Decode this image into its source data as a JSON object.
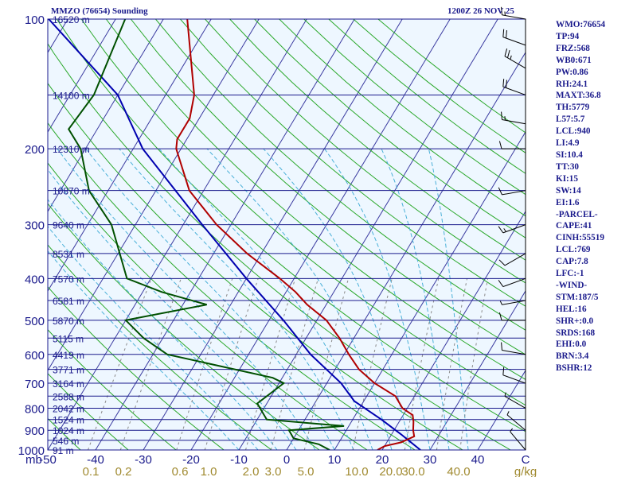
{
  "header": {
    "station": "MMZO (76654) Sounding",
    "time": "1200Z 26 NOV 25"
  },
  "colors": {
    "background": "#ffffff",
    "plot_bg": "#eef7ff",
    "isobar": "#1a1a8c",
    "isotherm": "#3a3aa0",
    "dry_adiabat": "#2aa82a",
    "moist_adiabat": "#4ab0d8",
    "mixing_ratio": "#8a8a8a",
    "temperature": "#b00000",
    "dewpoint": "#005000",
    "parcel": "#0000b0",
    "label": "#1a1a8c",
    "mixing_label": "#a08a30",
    "wind": "#000000"
  },
  "indices": [
    "WMO:76654",
    "TP:94",
    "FRZ:568",
    "WB0:671",
    "PW:0.86",
    "RH:24.1",
    "MAXT:36.8",
    "TH:5779",
    "L57:5.7",
    "LCL:940",
    "LI:4.9",
    "SI:10.4",
    "TT:30",
    "KI:15",
    "SW:14",
    "EI:1.6",
    "-PARCEL-",
    "CAPE:41",
    "CINH:55519",
    "LCL:769",
    "CAP:7.8",
    "LFC:-1",
    "-WIND-",
    "STM:187/5",
    "HEL:16",
    "SHR+:0.0",
    "SRDS:168",
    "EHI:0.0",
    "BRN:3.4",
    "BSHR:12"
  ],
  "chart_data": {
    "type": "skew-t log-p sounding",
    "title": "MMZO (76654) Sounding",
    "valid_time": "1200Z 26 NOV 25",
    "pressure_label": "mb",
    "temperature_unit": "C",
    "mixing_ratio_unit": "g/kg",
    "pressure_range_mb": [
      100,
      1000
    ],
    "temperature_range_c": [
      -50,
      50
    ],
    "pressure_ticks": [
      100,
      200,
      300,
      400,
      500,
      600,
      700,
      800,
      900,
      1000
    ],
    "temperature_ticks": [
      "-50",
      "-40",
      "-30",
      "-20",
      "-10",
      "0",
      "10",
      "20",
      "30",
      "40",
      "C"
    ],
    "mixing_ratio_ticks": [
      "0.1",
      "0.2",
      "0.6",
      "1.0",
      "2.0",
      "3.0",
      "5.0",
      "10.0",
      "20.0",
      "30.0",
      "40.0",
      "g/kg"
    ],
    "height_labels": [
      {
        "p": 100,
        "label": "16520 m"
      },
      {
        "p": 150,
        "label": "14100 m"
      },
      {
        "p": 200,
        "label": "12310 m"
      },
      {
        "p": 250,
        "label": "10870 m"
      },
      {
        "p": 300,
        "label": "9640 m"
      },
      {
        "p": 350,
        "label": "8531 m"
      },
      {
        "p": 400,
        "label": "7570 m"
      },
      {
        "p": 450,
        "label": "6581 m"
      },
      {
        "p": 500,
        "label": "5870 m"
      },
      {
        "p": 550,
        "label": "5115 m"
      },
      {
        "p": 600,
        "label": "4419 m"
      },
      {
        "p": 650,
        "label": "3771 m"
      },
      {
        "p": 700,
        "label": "3164 m"
      },
      {
        "p": 750,
        "label": "2588 m"
      },
      {
        "p": 800,
        "label": "2042 m"
      },
      {
        "p": 850,
        "label": "1524 m"
      },
      {
        "p": 900,
        "label": "1024 m"
      },
      {
        "p": 950,
        "label": "546 m"
      },
      {
        "p": 1000,
        "label": "91 m"
      }
    ],
    "temperature_profile": [
      [
        100,
        -75
      ],
      [
        150,
        -64
      ],
      [
        170,
        -62
      ],
      [
        190,
        -62
      ],
      [
        200,
        -61
      ],
      [
        250,
        -53
      ],
      [
        300,
        -43
      ],
      [
        350,
        -33
      ],
      [
        400,
        -23
      ],
      [
        430,
        -18
      ],
      [
        460,
        -14
      ],
      [
        500,
        -8
      ],
      [
        550,
        -3
      ],
      [
        600,
        1
      ],
      [
        650,
        5
      ],
      [
        700,
        10
      ],
      [
        750,
        16
      ],
      [
        800,
        19
      ],
      [
        830,
        22
      ],
      [
        860,
        23
      ],
      [
        900,
        24
      ],
      [
        930,
        25
      ],
      [
        960,
        23
      ],
      [
        980,
        20
      ],
      [
        1000,
        19
      ]
    ],
    "dewpoint_profile": [
      [
        100,
        -88
      ],
      [
        150,
        -85
      ],
      [
        180,
        -86
      ],
      [
        200,
        -81
      ],
      [
        250,
        -74
      ],
      [
        300,
        -65
      ],
      [
        400,
        -55
      ],
      [
        430,
        -46
      ],
      [
        460,
        -35
      ],
      [
        500,
        -50
      ],
      [
        550,
        -44
      ],
      [
        600,
        -37
      ],
      [
        680,
        -12
      ],
      [
        700,
        -9
      ],
      [
        780,
        -12
      ],
      [
        850,
        -8
      ],
      [
        880,
        9
      ],
      [
        900,
        -2
      ],
      [
        940,
        0
      ],
      [
        970,
        6
      ],
      [
        1000,
        9
      ]
    ],
    "parcel_profile": [
      [
        100,
        -104
      ],
      [
        150,
        -80
      ],
      [
        200,
        -68
      ],
      [
        300,
        -46
      ],
      [
        400,
        -30
      ],
      [
        500,
        -17
      ],
      [
        600,
        -7
      ],
      [
        700,
        3
      ],
      [
        770,
        8
      ],
      [
        850,
        16
      ],
      [
        920,
        22
      ],
      [
        1000,
        28
      ]
    ],
    "wind_barbs": [
      {
        "p": 100,
        "dir": 280,
        "spd": 15
      },
      {
        "p": 115,
        "dir": 290,
        "spd": 20
      },
      {
        "p": 130,
        "dir": 300,
        "spd": 25
      },
      {
        "p": 150,
        "dir": 290,
        "spd": 20
      },
      {
        "p": 175,
        "dir": 280,
        "spd": 15
      },
      {
        "p": 200,
        "dir": 270,
        "spd": 10
      },
      {
        "p": 250,
        "dir": 260,
        "spd": 10
      },
      {
        "p": 300,
        "dir": 250,
        "spd": 15
      },
      {
        "p": 350,
        "dir": 240,
        "spd": 10
      },
      {
        "p": 400,
        "dir": 250,
        "spd": 10
      },
      {
        "p": 450,
        "dir": 260,
        "spd": 5
      },
      {
        "p": 500,
        "dir": 270,
        "spd": 10
      },
      {
        "p": 600,
        "dir": 280,
        "spd": 10
      },
      {
        "p": 700,
        "dir": 290,
        "spd": 10
      },
      {
        "p": 800,
        "dir": 300,
        "spd": 5
      },
      {
        "p": 900,
        "dir": 310,
        "spd": 5
      },
      {
        "p": 1000,
        "dir": 320,
        "spd": 5
      }
    ],
    "grid": true
  }
}
